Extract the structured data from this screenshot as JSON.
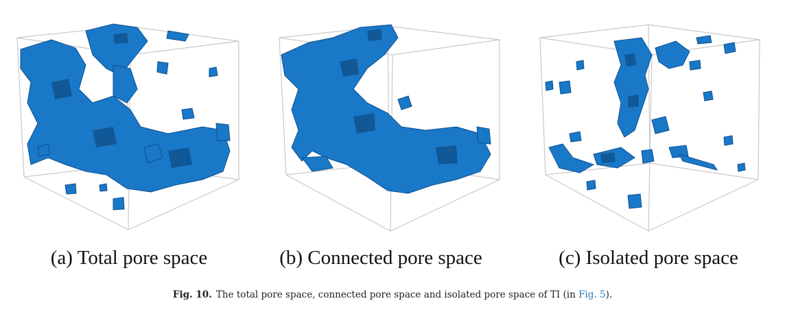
{
  "figure": {
    "panels": [
      {
        "id": "a",
        "label": "(a) Total pore space"
      },
      {
        "id": "b",
        "label": "(b) Connected pore space"
      },
      {
        "id": "c",
        "label": "(c) Isolated pore space"
      }
    ],
    "caption": {
      "label": "Fig. 10.",
      "text_before": "The total pore space, connected pore space and isolated pore space of TI (in ",
      "link": "Fig. 5",
      "text_after": ")."
    }
  },
  "colors": {
    "pore_fill": "#1a78c8",
    "pore_edge": "#0d4f8d",
    "cube_edge": "#c8c8c8",
    "link": "#2a7ab8"
  }
}
